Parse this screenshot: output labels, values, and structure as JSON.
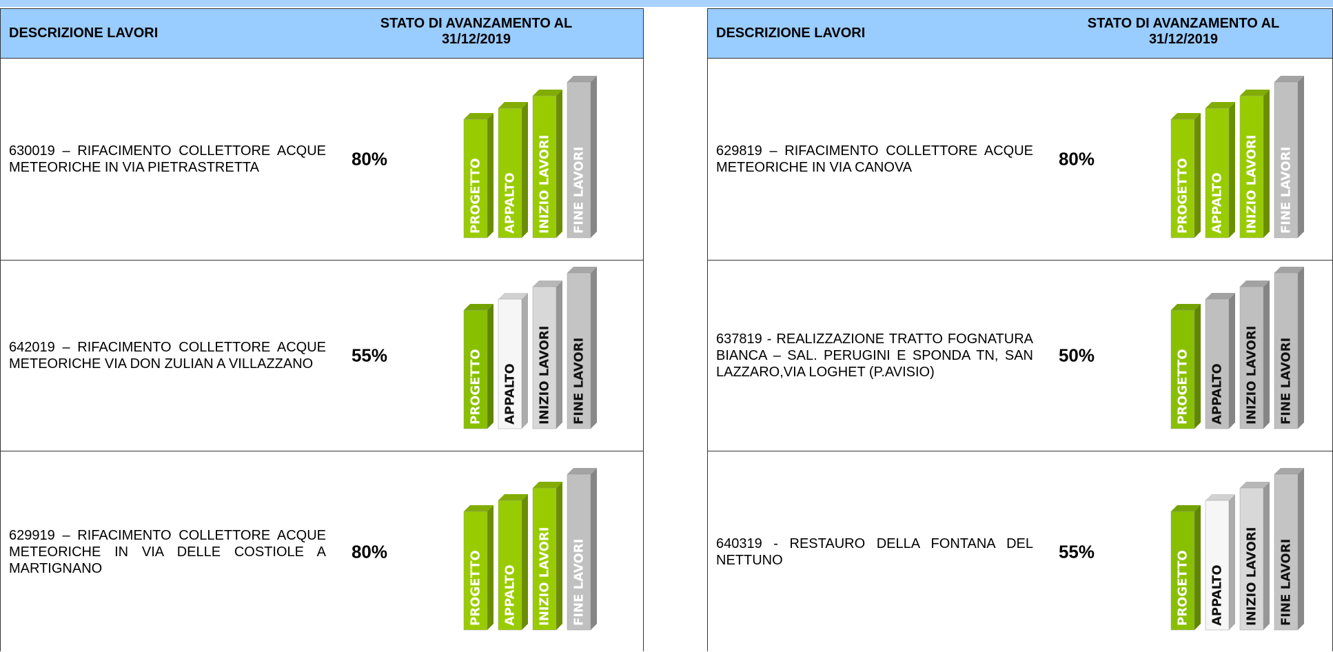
{
  "tables": [
    {
      "header": {
        "description": "DESCRIZIONE LAVORI",
        "status": "STATO DI AVANZAMENTO AL 31/12/2019"
      },
      "rows": [
        {
          "description": "630019 – RIFACIMENTO COLLETTORE ACQUE METEORICHE IN VIA PIETRASTRETTA",
          "percent": "80%",
          "bars": [
            {
              "label": "PROGETTO",
              "color": "#99cc00",
              "text_color": "#ffffff"
            },
            {
              "label": "APPALTO",
              "color": "#99cc00",
              "text_color": "#ffffff"
            },
            {
              "label": "INIZIO LAVORI",
              "color": "#99cc00",
              "text_color": "#ffffff"
            },
            {
              "label": "FINE LAVORI",
              "color": "#c0c0c0",
              "text_color": "#ffffff"
            }
          ]
        },
        {
          "description": "642019 – RIFACIMENTO COLLETTORE ACQUE METEORICHE VIA DON ZULIAN A VILLAZZANO",
          "percent": "55%",
          "bars": [
            {
              "label": "PROGETTO",
              "color": "#88c000",
              "text_color": "#ffffff"
            },
            {
              "label": "APPALTO",
              "color": "#f6f6f6",
              "text_color": "#111111"
            },
            {
              "label": "INIZIO LAVORI",
              "color": "#d8d8d8",
              "text_color": "#111111"
            },
            {
              "label": "FINE LAVORI",
              "color": "#c4c4c4",
              "text_color": "#111111"
            }
          ]
        },
        {
          "description": "629919 – RIFACIMENTO COLLETTORE ACQUE METEORICHE IN VIA DELLE COSTIOLE A  MARTIGNANO",
          "percent": "80%",
          "bars": [
            {
              "label": "PROGETTO",
              "color": "#99cc00",
              "text_color": "#ffffff"
            },
            {
              "label": "APPALTO",
              "color": "#99cc00",
              "text_color": "#ffffff"
            },
            {
              "label": "INIZIO LAVORI",
              "color": "#99cc00",
              "text_color": "#ffffff"
            },
            {
              "label": "FINE LAVORI",
              "color": "#c0c0c0",
              "text_color": "#ffffff"
            }
          ]
        }
      ]
    },
    {
      "header": {
        "description": "DESCRIZIONE LAVORI",
        "status": "STATO DI AVANZAMENTO AL 31/12/2019"
      },
      "rows": [
        {
          "description": "629819 – RIFACIMENTO COLLETTORE ACQUE METEORICHE IN VIA CANOVA",
          "percent": "80%",
          "bars": [
            {
              "label": "PROGETTO",
              "color": "#99cc00",
              "text_color": "#ffffff"
            },
            {
              "label": "APPALTO",
              "color": "#99cc00",
              "text_color": "#ffffff"
            },
            {
              "label": "INIZIO LAVORI",
              "color": "#99cc00",
              "text_color": "#ffffff"
            },
            {
              "label": "FINE LAVORI",
              "color": "#c0c0c0",
              "text_color": "#ffffff"
            }
          ]
        },
        {
          "description": "637819 - REALIZZAZIONE TRATTO FOGNATURA BIANCA – SAL. PERUGINI E SPONDA TN, SAN LAZZARO,VIA LOGHET (P.AVISIO)",
          "percent": "50%",
          "bars": [
            {
              "label": "PROGETTO",
              "color": "#88c000",
              "text_color": "#ffffff"
            },
            {
              "label": "APPALTO",
              "color": "#bfbfbf",
              "text_color": "#111111"
            },
            {
              "label": "INIZIO LAVORI",
              "color": "#bfbfbf",
              "text_color": "#111111"
            },
            {
              "label": "FINE LAVORI",
              "color": "#bfbfbf",
              "text_color": "#111111"
            }
          ]
        },
        {
          "description": "640319 - RESTAURO DELLA FONTANA DEL NETTUNO",
          "percent": "55%",
          "bars": [
            {
              "label": "PROGETTO",
              "color": "#88c000",
              "text_color": "#ffffff"
            },
            {
              "label": "APPALTO",
              "color": "#f6f6f6",
              "text_color": "#111111"
            },
            {
              "label": "INIZIO LAVORI",
              "color": "#d8d8d8",
              "text_color": "#111111"
            },
            {
              "label": "FINE LAVORI",
              "color": "#c4c4c4",
              "text_color": "#111111"
            }
          ]
        }
      ]
    }
  ]
}
